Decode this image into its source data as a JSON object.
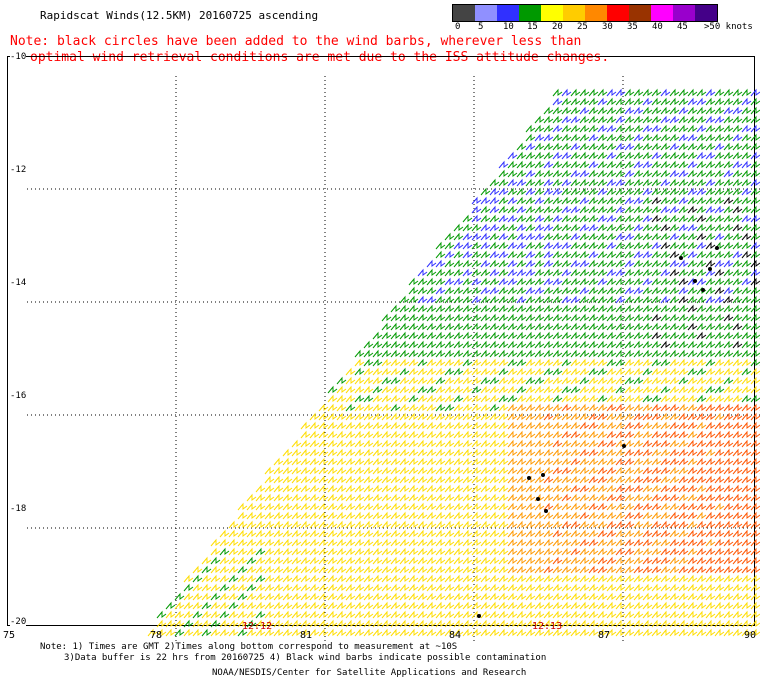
{
  "header": {
    "title": "Rapidscat Winds(12.5KM) 20160725 ascending",
    "note_line1": "Note: black circles have been added to the wind barbs, wherever less than",
    "note_line2": "optimal wind retrieval conditions are met due to the ISS attitude changes."
  },
  "legend": {
    "labels": [
      "0",
      "5",
      "10",
      "15",
      "20",
      "25",
      "30",
      "35",
      "40",
      "45",
      ">50 knots"
    ],
    "colors": [
      "#444444",
      "#9090ff",
      "#3030ff",
      "#009900",
      "#ffff00",
      "#ffcc00",
      "#ff8800",
      "#ff0000",
      "#993300",
      "#ff00ff",
      "#9900cc",
      "#440088"
    ]
  },
  "axes": {
    "y_labels": [
      "-10",
      "-12",
      "-14",
      "-16",
      "-18",
      "-20"
    ],
    "x_labels": [
      "75",
      "78",
      "81",
      "84",
      "87",
      "90"
    ]
  },
  "time_labels": [
    "12:12",
    "12:13"
  ],
  "footer": {
    "line1": "Note: 1) Times are GMT 2)Times along bottom correspond to measurement at ~10S",
    "line2": "3)Data buffer is 22 hrs from 20160725 4) Black wind barbs indicate possible contamination",
    "line3": "NOAA/NESDIS/Center for Satellite Applications and Research"
  },
  "colors": {
    "note_red": "#ff0000",
    "grid": "#000000",
    "time_label": "#cc0000"
  }
}
